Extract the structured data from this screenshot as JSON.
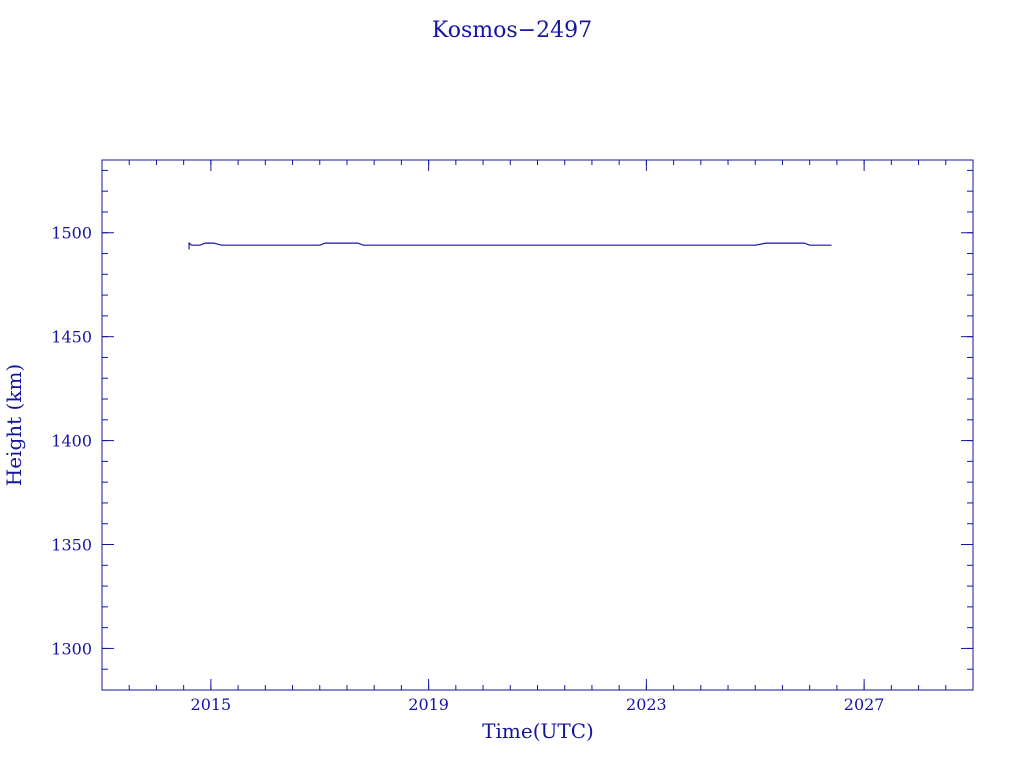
{
  "chart_data": {
    "type": "line",
    "title": "Kosmos−2497",
    "xlabel": "Time(UTC)",
    "ylabel": "Height (km)",
    "xlim": [
      2013.0,
      2029.0
    ],
    "ylim": [
      1280,
      1535
    ],
    "x_ticks": [
      2015,
      2019,
      2023,
      2027
    ],
    "x_tick_labels": [
      "2015",
      "2019",
      "2023",
      "2027"
    ],
    "x_minor_step": 0.5,
    "y_ticks": [
      1300,
      1350,
      1400,
      1450,
      1500
    ],
    "y_tick_labels": [
      "1300",
      "1350",
      "1400",
      "1450",
      "1500"
    ],
    "y_minor_step": 10,
    "grid": false,
    "series": [
      {
        "x": [
          2014.6,
          2014.6,
          2014.65,
          2014.8,
          2014.9,
          2015.05,
          2015.2,
          2016.0,
          2017.0,
          2017.1,
          2017.3,
          2017.7,
          2017.8,
          2018.5,
          2019.8,
          2019.85,
          2021.0,
          2022.3,
          2022.35,
          2023.0,
          2023.8,
          2023.85,
          2025.0,
          2025.2,
          2025.9,
          2026.0,
          2026.4
        ],
        "y": [
          1492,
          1495,
          1494,
          1494,
          1495,
          1495,
          1494,
          1494,
          1494,
          1495,
          1495,
          1495,
          1494,
          1494,
          1494,
          1494,
          1494,
          1494,
          1494,
          1494,
          1494,
          1494,
          1494,
          1495,
          1495,
          1494,
          1494
        ]
      }
    ]
  }
}
